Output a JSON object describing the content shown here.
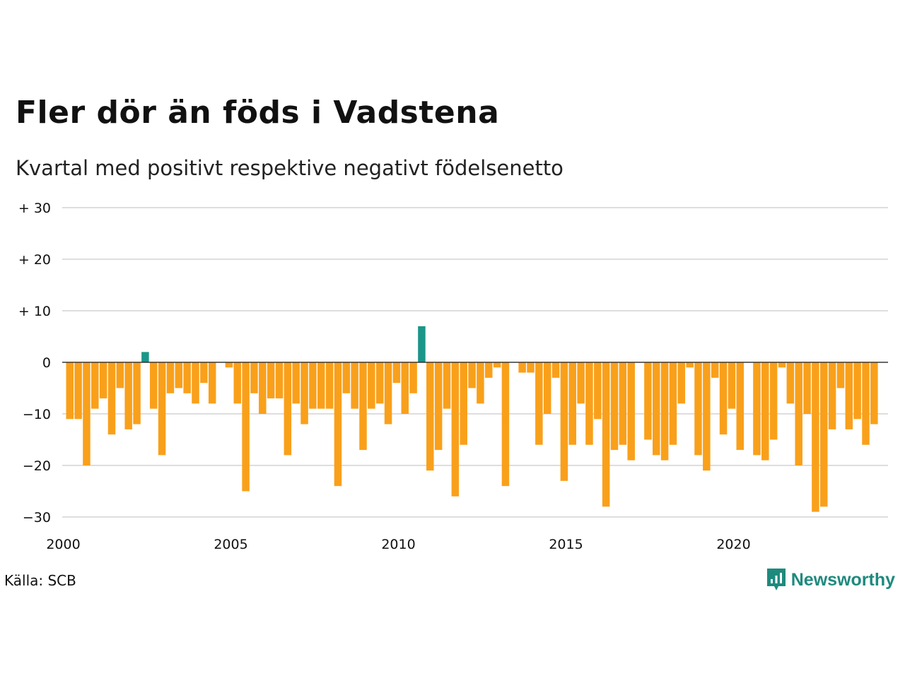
{
  "title": "Fler dör än föds i Vadstena",
  "subtitle": "Kvartal med positivt respektive negativt födelsenetto",
  "source": "Källa: SCB",
  "brand": {
    "name": "Newsworthy",
    "icon": "newsworthy-logo-icon",
    "color": "#1e8a7e"
  },
  "chart_data": {
    "type": "bar",
    "x_start": "2000 Q1",
    "ylim": [
      -30,
      30
    ],
    "y_ticks": [
      {
        "value": 30,
        "label": "+ 30"
      },
      {
        "value": 20,
        "label": "+ 20"
      },
      {
        "value": 10,
        "label": "+ 10"
      },
      {
        "value": 0,
        "label": "0"
      },
      {
        "value": -10,
        "label": "−10"
      },
      {
        "value": -20,
        "label": "−20"
      },
      {
        "value": -30,
        "label": "−30"
      }
    ],
    "x_ticks": [
      "2000",
      "2005",
      "2010",
      "2015",
      "2020"
    ],
    "grid": true,
    "colors": {
      "positive": "#1b9688",
      "negative": "#f9a01b"
    },
    "values": [
      -11,
      -11,
      -20,
      -9,
      -7,
      -14,
      -5,
      -13,
      -12,
      2,
      -9,
      -18,
      -6,
      -5,
      -6,
      -8,
      -4,
      -8,
      0,
      -1,
      -8,
      -25,
      -6,
      -10,
      -7,
      -7,
      -18,
      -8,
      -12,
      -9,
      -9,
      -9,
      -24,
      -6,
      -9,
      -17,
      -9,
      -8,
      -12,
      -4,
      -10,
      -6,
      7,
      -21,
      -17,
      -9,
      -26,
      -16,
      -5,
      -8,
      -3,
      -1,
      -24,
      0,
      -2,
      -2,
      -16,
      -10,
      -3,
      -23,
      -16,
      -8,
      -16,
      -11,
      -28,
      -17,
      -16,
      -19,
      0,
      -15,
      -18,
      -19,
      -16,
      -8,
      -1,
      -18,
      -21,
      -3,
      -14,
      -9,
      -17,
      0,
      -18,
      -19,
      -15,
      -1,
      -8,
      -20,
      -10,
      -29,
      -28,
      -13,
      -5,
      -13,
      -11,
      -16,
      -12
    ]
  }
}
